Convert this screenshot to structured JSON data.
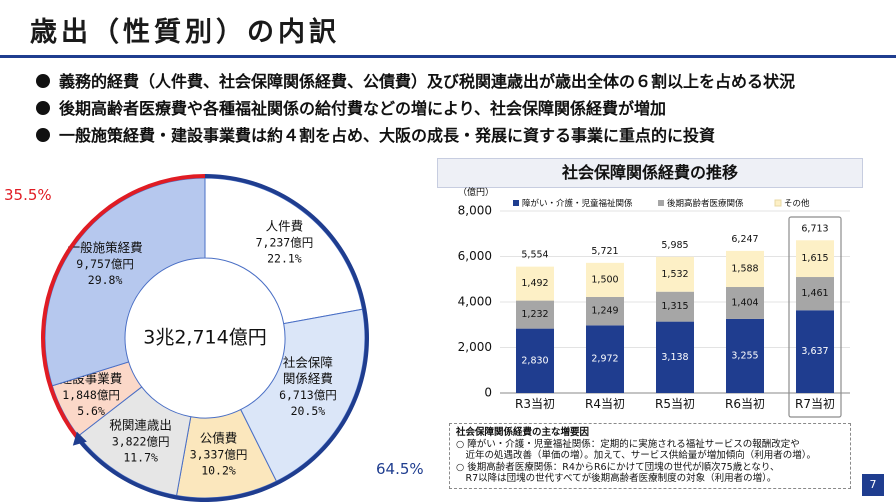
{
  "title": "歳出（性質別）の内訳",
  "bullets": [
    "義務的経費（人件費、社会保障関係経費、公債費）及び税関連歳出が歳出全体の６割以上を占める状況",
    "後期高齢者医療費や各種福祉関係の給付費などの増により、社会保障関係経費が増加",
    "一般施策経費・建設事業費は約４割を占め、大阪の成長・発展に資する事業に重点的に投資"
  ],
  "page_number": "7",
  "donut_center_label": "3兆2,714億円",
  "arc_labels": {
    "obligatory_share": "64.5%",
    "investment_share": "35.5%"
  },
  "bar_panel_title": "社会保障関係経費の推移",
  "notes": {
    "heading": "社会保障関係経費の主な増要因",
    "lines": [
      "○ 障がい・介護・児童福祉関係：定期的に実施される福祉サービスの報酬改定や",
      "　近年の処遇改善（単価の増）。加えて、サービス供給量が増加傾向（利用者の増）。",
      "○ 後期高齢者医療関係：R4からR6にかけて団塊の世代が順次75歳となり、",
      "　R7以降は団塊の世代すべてが後期高齢者医療制度の対象（利用者の増）。"
    ]
  },
  "chart_data": [
    {
      "type": "pie",
      "subtype": "donut",
      "title": "歳出（性質別）の内訳",
      "total_label": "3兆2,714億円",
      "slices": [
        {
          "name": "人件費",
          "value": 7237,
          "value_label": "7,237億円",
          "pct": "22.1%",
          "color": "#ffffff"
        },
        {
          "name": "社会保障関係経費",
          "name_lines": [
            "社会保障",
            "関係経費"
          ],
          "value": 6713,
          "value_label": "6,713億円",
          "pct": "20.5%",
          "color": "#dbe6f8"
        },
        {
          "name": "公債費",
          "value": 3337,
          "value_label": "3,337億円",
          "pct": "10.2%",
          "color": "#fbe7bd"
        },
        {
          "name": "税関連歳出",
          "value": 3822,
          "value_label": "3,822億円",
          "pct": "11.7%",
          "color": "#e6e6e6"
        },
        {
          "name": "建設事業費",
          "value": 1848,
          "value_label": "1,848億円",
          "pct": "5.6%",
          "color": "#fbd8c8"
        },
        {
          "name": "一般施策経費",
          "value": 9757,
          "value_label": "9,757億円",
          "pct": "29.8%",
          "color": "#b6c8ee"
        }
      ],
      "colors": {
        "obligatory_arc": "#1f3d8f",
        "investment_arc": "#e01c24",
        "slice_border": "#4a6fc5"
      }
    },
    {
      "type": "bar",
      "stacked": true,
      "title": "社会保障関係経費の推移",
      "ylabel": "（億円）",
      "ylim": [
        0,
        8000
      ],
      "yticks": [
        0,
        2000,
        4000,
        6000,
        8000
      ],
      "ytick_labels": [
        "0",
        "2,000",
        "4,000",
        "6,000",
        "8,000"
      ],
      "categories": [
        "R3当初",
        "R4当初",
        "R5当初",
        "R6当初",
        "R7当初"
      ],
      "highlight_category": "R7当初",
      "series": [
        {
          "name": "障がい・介護・児童福祉関係",
          "values": [
            2830,
            2972,
            3138,
            3255,
            3637
          ],
          "labels": [
            "2,830",
            "2,972",
            "3,138",
            "3,255",
            "3,637"
          ],
          "color": "#1f3d8f",
          "label_color": "#ffffff"
        },
        {
          "name": "後期高齢者医療関係",
          "values": [
            1232,
            1249,
            1315,
            1404,
            1461
          ],
          "labels": [
            "1,232",
            "1,249",
            "1,315",
            "1,404",
            "1,461"
          ],
          "color": "#a6a6a6",
          "label_color": "#111111"
        },
        {
          "name": "その他",
          "values": [
            1492,
            1500,
            1532,
            1588,
            1615
          ],
          "labels": [
            "1,492",
            "1,500",
            "1,532",
            "1,588",
            "1,615"
          ],
          "color": "#fdf0c6",
          "label_color": "#111111"
        }
      ],
      "totals": [
        "5,554",
        "5,721",
        "5,985",
        "6,247",
        "6,713"
      ]
    }
  ]
}
